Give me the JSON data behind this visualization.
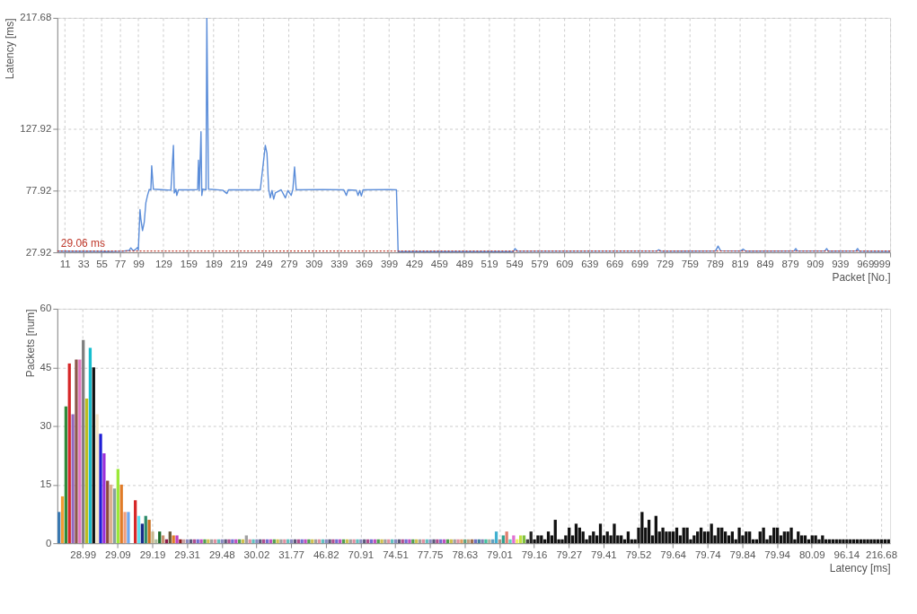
{
  "chart_data": [
    {
      "type": "line",
      "xlabel": "Packet [No.]",
      "ylabel": "Latency [ms]",
      "color": "#5b8dd9",
      "grid": true,
      "xlim": [
        2,
        999
      ],
      "ylim": [
        27.92,
        217.68
      ],
      "xticks": [
        11,
        33,
        55,
        77,
        99,
        129,
        159,
        189,
        219,
        249,
        279,
        309,
        339,
        369,
        399,
        429,
        459,
        489,
        519,
        549,
        579,
        609,
        639,
        669,
        699,
        729,
        759,
        789,
        819,
        849,
        879,
        909,
        939,
        969,
        999
      ],
      "yticks": [
        27.92,
        77.92,
        127.92,
        217.68
      ],
      "ref_lines": [
        {
          "axis": "y",
          "value": 29.06,
          "label": "29.06 ms",
          "color": "#c0392b",
          "line_style": "dotted"
        }
      ],
      "x": [
        2,
        20,
        40,
        60,
        80,
        88,
        90,
        93,
        96,
        98,
        99,
        101,
        102,
        104,
        106,
        108,
        110,
        112,
        114,
        115,
        117,
        130,
        138,
        141,
        142,
        144,
        145,
        147,
        165,
        170,
        171,
        172,
        174,
        175,
        176,
        180,
        181,
        183,
        200,
        205,
        207,
        230,
        245,
        251,
        253,
        255,
        257,
        259,
        261,
        263,
        270,
        275,
        278,
        282,
        284,
        286,
        288,
        320,
        345,
        348,
        350,
        360,
        362,
        364,
        366,
        368,
        400,
        408,
        410,
        420,
        548,
        550,
        553,
        720,
        722,
        725,
        790,
        793,
        796,
        820,
        823,
        826,
        884,
        886,
        888,
        921,
        923,
        925,
        958,
        960,
        962,
        999
      ],
      "values": [
        28.9,
        28.7,
        28.8,
        28.6,
        28.8,
        29.5,
        31.5,
        29.2,
        30.5,
        31.8,
        29.8,
        62.5,
        55,
        45.5,
        52,
        68,
        74,
        78.8,
        78.5,
        98,
        79,
        78.5,
        78.2,
        114.5,
        76,
        79,
        74,
        78.5,
        78.5,
        78.8,
        102.5,
        78,
        125.5,
        74,
        79,
        78.5,
        217.68,
        79,
        78.2,
        75.5,
        78.5,
        78.5,
        78.5,
        114.5,
        108,
        79,
        72,
        78,
        71,
        76,
        78.5,
        72,
        78,
        74,
        79,
        97,
        78.5,
        78.8,
        78.5,
        74,
        78.5,
        78.2,
        74,
        78,
        73.5,
        78.5,
        78.8,
        78.5,
        28.5,
        28.6,
        28.6,
        31,
        28.8,
        29,
        30,
        28.8,
        29,
        33,
        29.2,
        29,
        30.5,
        28.9,
        29,
        31,
        29,
        29,
        31,
        28.9,
        29,
        31,
        28.9,
        28.7
      ]
    },
    {
      "type": "bar",
      "xlabel": "Latency [ms]",
      "ylabel": "Packets [num]",
      "grid": true,
      "ylim": [
        0,
        60
      ],
      "yticks": [
        0,
        15,
        30,
        45,
        60
      ],
      "categories": [
        null,
        null,
        null,
        null,
        null,
        null,
        null,
        "28.99",
        null,
        null,
        null,
        null,
        null,
        null,
        null,
        null,
        null,
        "29.09",
        null,
        null,
        null,
        null,
        null,
        null,
        null,
        null,
        null,
        "29.19",
        null,
        null,
        null,
        null,
        null,
        null,
        null,
        null,
        null,
        "29.31",
        null,
        null,
        null,
        null,
        null,
        null,
        null,
        null,
        null,
        "29.48",
        null,
        null,
        null,
        null,
        null,
        null,
        null,
        null,
        null,
        "30.02",
        null,
        null,
        null,
        null,
        null,
        null,
        null,
        null,
        null,
        "31.77",
        null,
        null,
        null,
        null,
        null,
        null,
        null,
        null,
        null,
        "46.82",
        null,
        null,
        null,
        null,
        null,
        null,
        null,
        null,
        null,
        "70.91",
        null,
        null,
        null,
        null,
        null,
        null,
        null,
        null,
        null,
        "74.51",
        null,
        null,
        null,
        null,
        null,
        null,
        null,
        null,
        null,
        "77.75",
        null,
        null,
        null,
        null,
        null,
        null,
        null,
        null,
        null,
        "78.63",
        null,
        null,
        null,
        null,
        null,
        null,
        null,
        null,
        null,
        "79.01",
        null,
        null,
        null,
        null,
        null,
        null,
        null,
        null,
        null,
        "79.16",
        null,
        null,
        null,
        null,
        null,
        null,
        null,
        null,
        null,
        "79.27",
        null,
        null,
        null,
        null,
        null,
        null,
        null,
        null,
        null,
        "79.41",
        null,
        null,
        null,
        null,
        null,
        null,
        null,
        null,
        null,
        "79.52",
        null,
        null,
        null,
        null,
        null,
        null,
        null,
        null,
        null,
        "79.64",
        null,
        null,
        null,
        null,
        null,
        null,
        null,
        null,
        null,
        "79.74",
        null,
        null,
        null,
        null,
        null,
        null,
        null,
        null,
        null,
        "79.84",
        null,
        null,
        null,
        null,
        null,
        null,
        null,
        null,
        null,
        "79.94",
        null,
        null,
        null,
        null,
        null,
        null,
        null,
        null,
        null,
        "80.09",
        null,
        null,
        null,
        null,
        null,
        null,
        null,
        null,
        null,
        "96.14",
        null,
        null,
        null,
        null,
        null,
        null,
        null,
        null,
        null,
        "216.68",
        null,
        null
      ],
      "values": [
        8,
        12,
        35,
        46,
        33,
        47,
        47,
        52,
        37,
        50,
        45,
        33,
        28,
        23,
        16,
        15,
        14,
        19,
        15,
        8,
        8,
        0,
        11,
        7,
        5,
        7,
        6,
        3,
        1,
        3,
        2,
        1,
        3,
        2,
        2,
        1,
        1,
        1,
        1,
        1,
        1,
        1,
        1,
        1,
        1,
        1,
        1,
        1,
        1,
        1,
        1,
        1,
        1,
        1,
        2,
        1,
        1,
        1,
        1,
        1,
        1,
        1,
        1,
        1,
        1,
        1,
        1,
        1,
        1,
        1,
        1,
        1,
        1,
        1,
        1,
        1,
        1,
        1,
        1,
        1,
        1,
        1,
        1,
        1,
        1,
        1,
        1,
        1,
        1,
        1,
        1,
        1,
        1,
        1,
        1,
        1,
        1,
        1,
        1,
        1,
        1,
        1,
        1,
        1,
        1,
        1,
        1,
        1,
        1,
        1,
        1,
        1,
        1,
        1,
        1,
        1,
        1,
        1,
        1,
        1,
        1,
        1,
        1,
        1,
        1,
        1,
        3,
        1,
        2,
        3,
        1,
        2,
        1,
        2,
        2,
        1,
        3,
        1,
        2,
        2,
        1,
        3,
        2,
        6,
        1,
        1,
        2,
        4,
        2,
        5,
        4,
        3,
        1,
        2,
        3,
        2,
        5,
        2,
        3,
        2,
        5,
        2,
        2,
        1,
        3,
        1,
        1,
        4,
        8,
        4,
        6,
        2,
        7,
        3,
        4,
        3,
        3,
        3,
        4,
        2,
        4,
        4,
        1,
        2,
        3,
        4,
        3,
        3,
        5,
        2,
        4,
        4,
        3,
        2,
        3,
        1,
        4,
        2,
        3,
        3,
        1,
        1,
        3,
        4,
        1,
        2,
        4,
        4,
        2,
        3,
        3,
        4,
        1,
        3,
        2,
        2,
        1,
        2,
        2,
        1,
        2,
        1,
        1,
        1,
        1,
        1,
        1,
        1,
        1,
        1,
        1,
        1,
        1,
        1,
        1,
        1,
        1,
        1,
        1,
        1
      ],
      "colors": [
        "#3a78b0",
        "#f39c34",
        "#2e8b3a",
        "#d62728",
        "#9467bd",
        "#8c564b",
        "#e377c2",
        "#7f7f7f",
        "#bcbd22",
        "#17becf",
        "#111111",
        "#f5e6c8",
        "#1f1fd6",
        "#9b30d9",
        "#8b4a3c",
        "#e0b090",
        "#8aa0a0",
        "#9be83a",
        "#e07b28",
        "#f0a080",
        "#6fa8f0",
        "#dddddd",
        "#d62728",
        "#5ee0f0",
        "#1a2a8a",
        "#2e8b6a",
        "#c87020",
        "#c8b890",
        "#b0c0a0",
        "#1e6b2a",
        "#c89070",
        "#8b1a4a",
        "#6b5a3a",
        "#e07b28",
        "#c040c0",
        "#8b1a1a",
        "#c8a0a0",
        "#8a8ac0",
        "#5a5a7a",
        "#b05090",
        "#7070d0",
        "#c050c0",
        "#50a050",
        "#d0c050",
        "#a0a0a0",
        "#e090a0",
        "#60c0c0",
        "#8a8ac0",
        "#5a5a7a",
        "#b05090",
        "#7070d0",
        "#c050c0",
        "#50a050",
        "#d0c050",
        "#a0a0a0",
        "#e090a0",
        "#60c0c0",
        "#8a8ac0",
        "#5a5a7a",
        "#b05090",
        "#7070d0",
        "#c050c0",
        "#50a050",
        "#d0c050",
        "#a0a0a0",
        "#e090a0",
        "#60c0c0",
        "#8a8ac0",
        "#5a5a7a",
        "#b05090",
        "#7070d0",
        "#c050c0",
        "#50a050",
        "#d0c050",
        "#a0a0a0",
        "#e090a0",
        "#60c0c0",
        "#8a8ac0",
        "#5a5a7a",
        "#b05090",
        "#7070d0",
        "#c050c0",
        "#50a050",
        "#d0c050",
        "#a0a0a0",
        "#e090a0",
        "#60c0c0",
        "#8a8ac0",
        "#5a5a7a",
        "#b05090",
        "#7070d0",
        "#c050c0",
        "#50a050",
        "#d0c050",
        "#a0a0a0",
        "#e090a0",
        "#60c0c0",
        "#8a8ac0",
        "#5a5a7a",
        "#b05090",
        "#7070d0",
        "#c050c0",
        "#50a050",
        "#d0c050",
        "#a0a0a0",
        "#e090a0",
        "#60c0c0",
        "#8a8ac0",
        "#5a5a7a",
        "#b05090",
        "#7070d0",
        "#c050c0",
        "#50a050",
        "#d0c050",
        "#a0a0a0",
        "#e090a0",
        "#e0a060",
        "#60a080",
        "#c0a080",
        "#a07050",
        "#7070c0",
        "#4080a0",
        "#8080b0",
        "#40c0a0",
        "#b0b0a0",
        "#60a0c0",
        "#40b0d0",
        "#b09080",
        "#30a090",
        "#e08070",
        "#60d0c0",
        "#e070d0",
        "#f0f060",
        "#c0e040",
        "#80c040",
        "#404040",
        "#202020",
        "#111111",
        "#111111",
        "#111111",
        "#111111",
        "#111111",
        "#111111",
        "#111111",
        "#111111",
        "#111111",
        "#111111",
        "#111111",
        "#111111",
        "#111111",
        "#111111",
        "#111111",
        "#111111",
        "#111111",
        "#111111",
        "#111111",
        "#111111",
        "#111111",
        "#111111",
        "#111111",
        "#111111",
        "#111111",
        "#111111",
        "#111111",
        "#111111",
        "#111111",
        "#111111",
        "#111111",
        "#111111",
        "#111111",
        "#111111",
        "#111111",
        "#111111",
        "#111111",
        "#111111",
        "#111111",
        "#111111",
        "#111111",
        "#111111",
        "#111111",
        "#111111",
        "#111111",
        "#111111",
        "#111111",
        "#111111",
        "#111111",
        "#111111",
        "#111111",
        "#111111",
        "#111111",
        "#111111",
        "#111111",
        "#111111",
        "#111111",
        "#111111",
        "#111111",
        "#111111",
        "#111111",
        "#111111",
        "#111111",
        "#111111",
        "#111111",
        "#111111",
        "#111111",
        "#111111",
        "#111111",
        "#111111",
        "#111111",
        "#111111",
        "#111111",
        "#111111",
        "#111111",
        "#111111",
        "#111111",
        "#111111",
        "#111111",
        "#111111",
        "#111111",
        "#111111",
        "#111111",
        "#111111",
        "#111111",
        "#111111",
        "#111111",
        "#111111",
        "#111111",
        "#111111",
        "#111111",
        "#111111",
        "#111111",
        "#111111",
        "#111111",
        "#111111",
        "#111111",
        "#111111",
        "#111111",
        "#111111",
        "#111111",
        "#111111",
        "#111111"
      ]
    }
  ]
}
